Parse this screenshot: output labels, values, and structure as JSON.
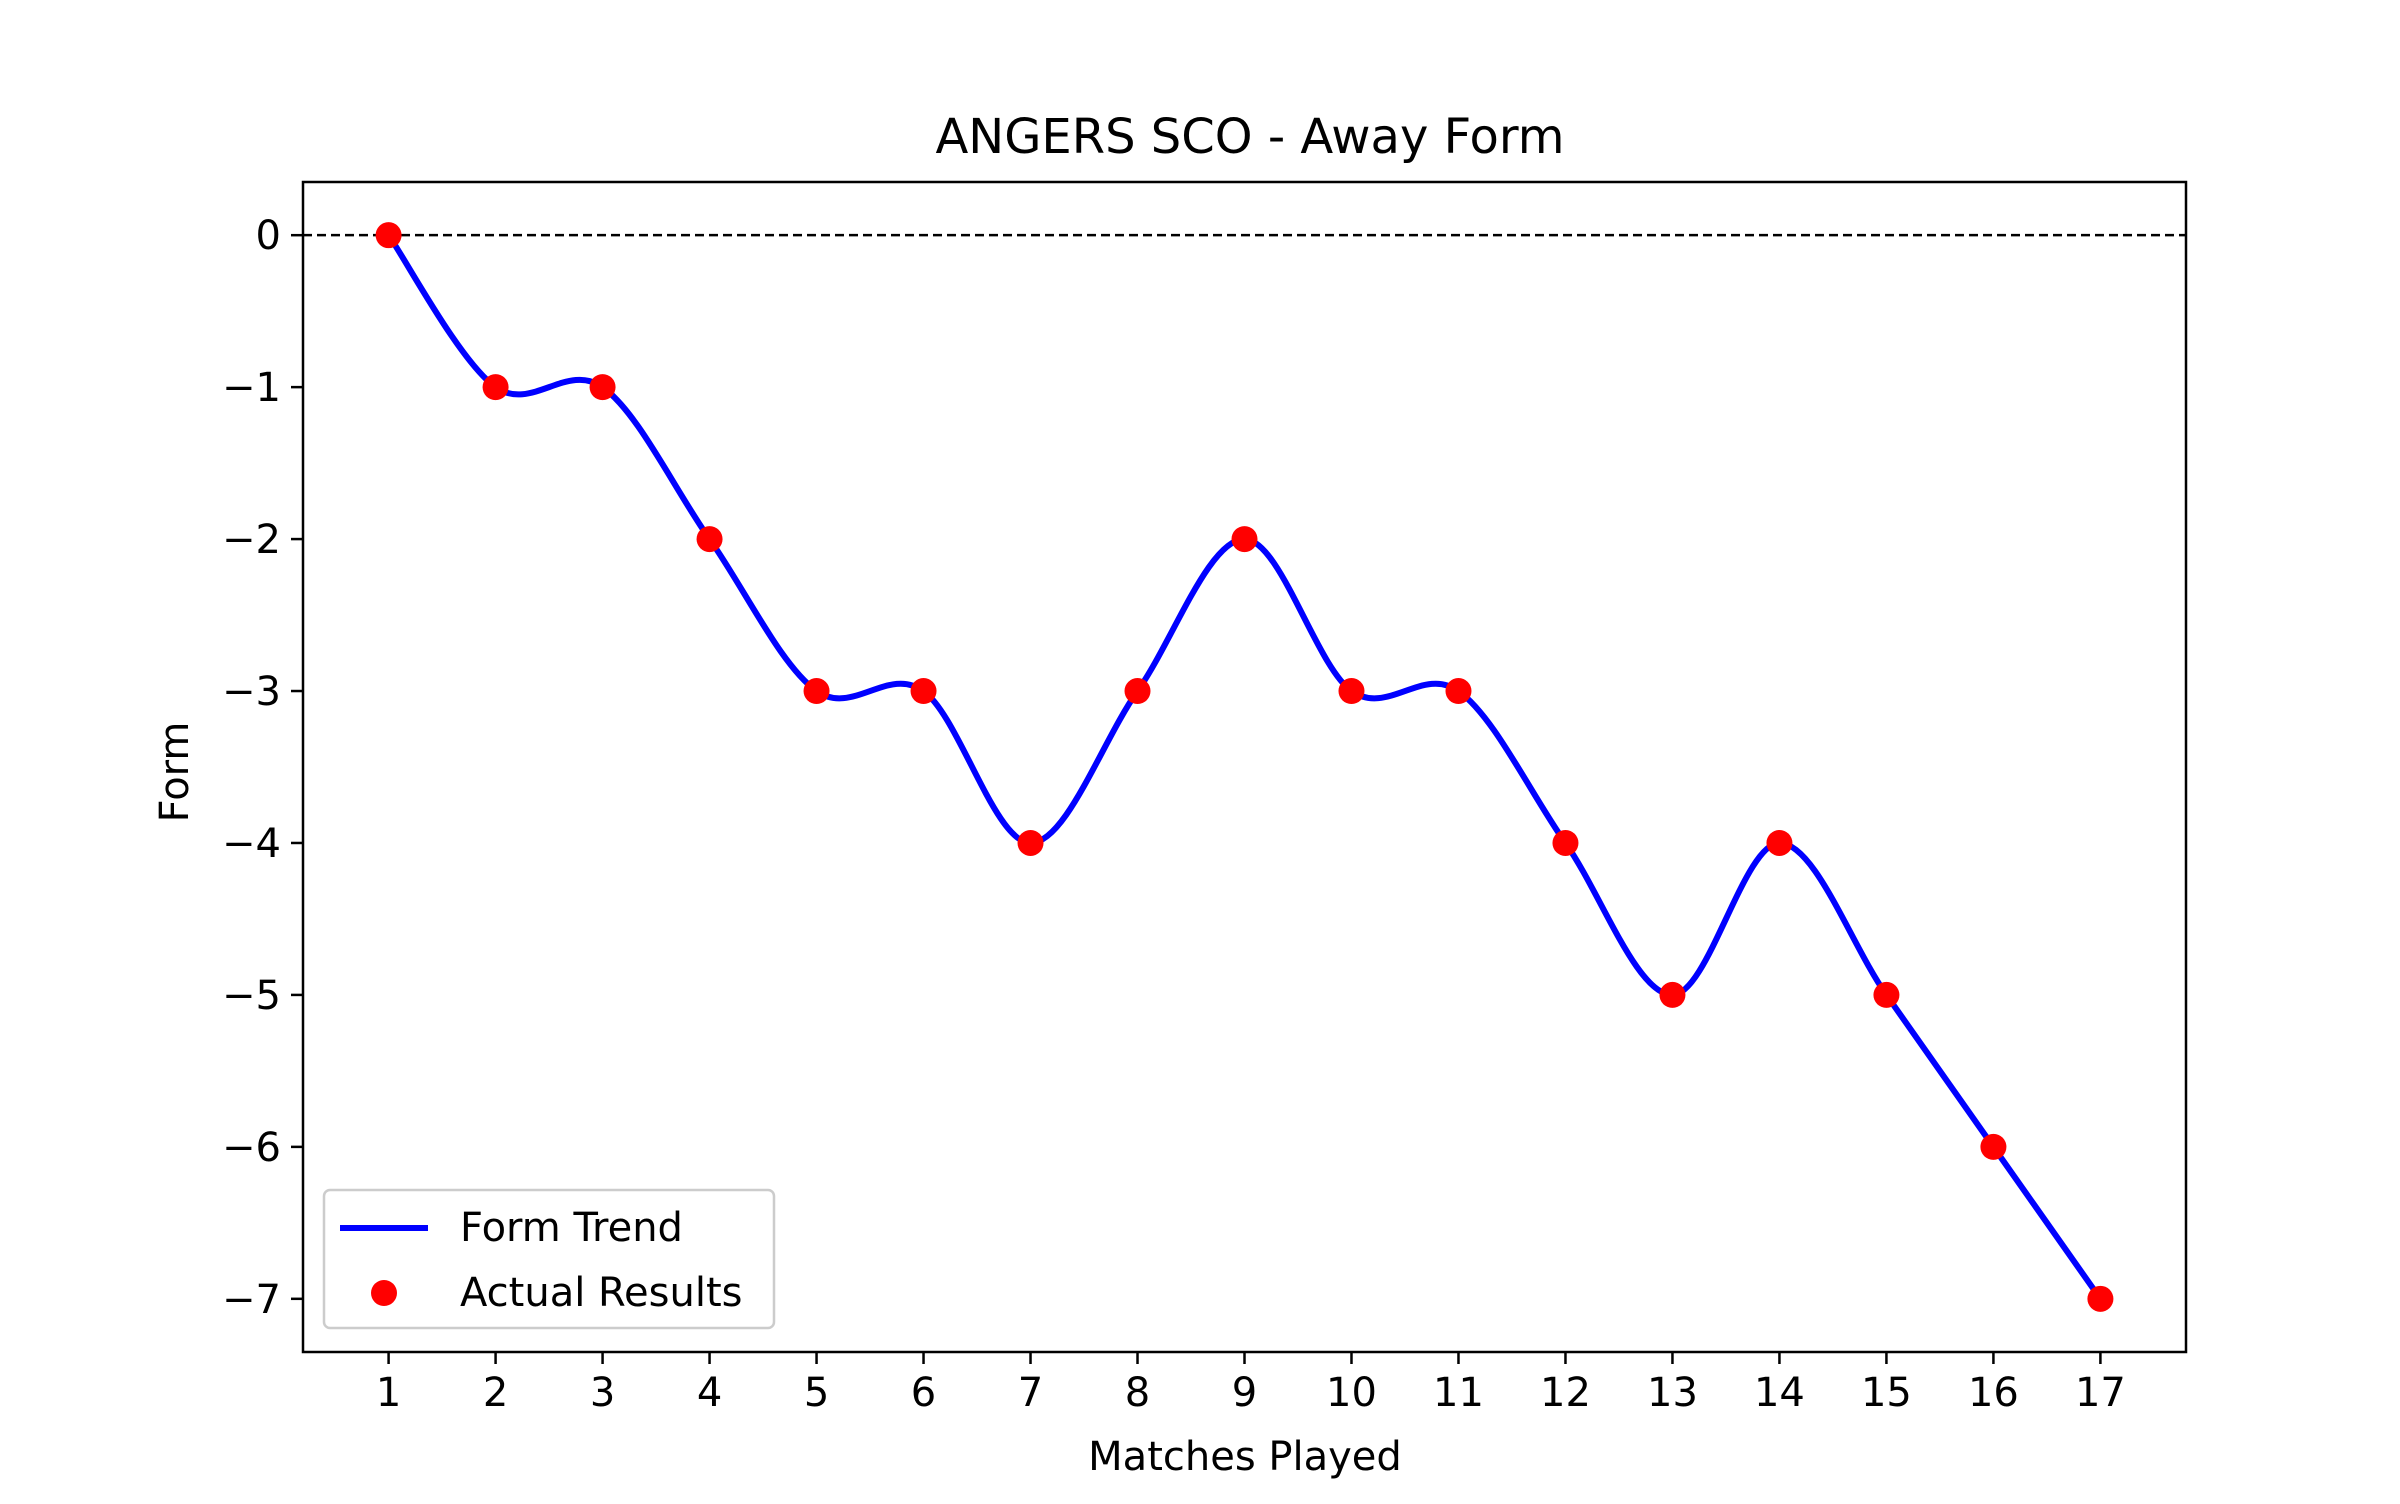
{
  "chart_data": {
    "type": "line",
    "title": "ANGERS SCO - Away Form",
    "xlabel": "Matches Played",
    "ylabel": "Form",
    "x": [
      1,
      2,
      3,
      4,
      5,
      6,
      7,
      8,
      9,
      10,
      11,
      12,
      13,
      14,
      15,
      16,
      17
    ],
    "xticks": [
      "1",
      "2",
      "3",
      "4",
      "5",
      "6",
      "7",
      "8",
      "9",
      "10",
      "11",
      "12",
      "13",
      "14",
      "15",
      "16",
      "17"
    ],
    "yticks": [
      "0",
      "−1",
      "−2",
      "−3",
      "−4",
      "−5",
      "−6",
      "−7"
    ],
    "ytick_values": [
      0,
      -1,
      -2,
      -3,
      -4,
      -5,
      -6,
      -7
    ],
    "xlim": [
      0.2,
      17.8
    ],
    "ylim": [
      -7.35,
      0.35
    ],
    "reference_line": 0,
    "grid": false,
    "legend_position": "lower-left",
    "series": [
      {
        "name": "Form Trend",
        "kind": "smooth-line",
        "color": "#0000ff",
        "values": [
          0,
          -1,
          -1,
          -2,
          -3,
          -3,
          -4,
          -3,
          -2,
          -3,
          -3,
          -4,
          -5,
          -4,
          -5,
          -6,
          -7
        ]
      },
      {
        "name": "Actual Results",
        "kind": "scatter",
        "color": "#ff0000",
        "values": [
          0,
          -1,
          -1,
          -2,
          -3,
          -3,
          -4,
          -3,
          -2,
          -3,
          -3,
          -4,
          -5,
          -4,
          -5,
          -6,
          -7
        ]
      }
    ]
  }
}
